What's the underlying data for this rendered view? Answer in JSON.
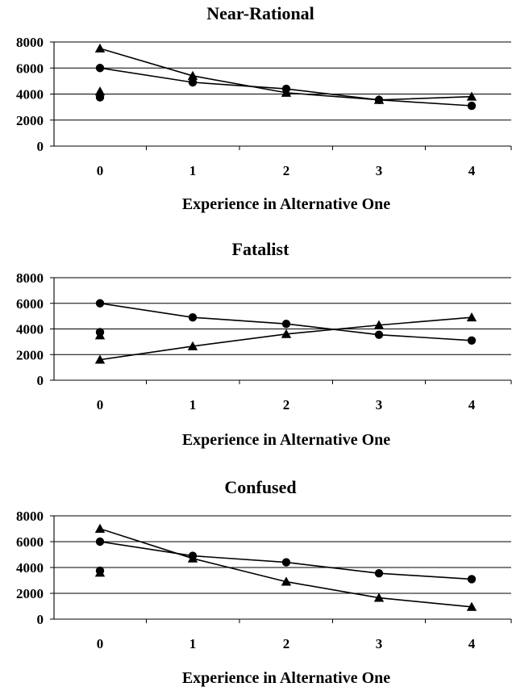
{
  "colors": {
    "line": "#000000",
    "grid": "#000000",
    "background": "#ffffff"
  },
  "chart_data": [
    {
      "type": "line",
      "title": "Near-Rational",
      "xlabel": "Experience in Alternative One",
      "ylabel": "",
      "categories": [
        "0",
        "1",
        "2",
        "3",
        "4"
      ],
      "ylim": [
        0,
        8000
      ],
      "yticks": [
        "0",
        "2000",
        "4000",
        "6000",
        "8000"
      ],
      "grid": "horizontal",
      "legend": "none",
      "series": [
        {
          "marker": "triangle",
          "x": [
            0,
            1,
            2,
            3,
            4
          ],
          "values": [
            7500,
            5400,
            4100,
            3550,
            3800
          ]
        },
        {
          "marker": "circle",
          "x": [
            0,
            1,
            2,
            3,
            4
          ],
          "values": [
            6000,
            4900,
            4400,
            3550,
            3100
          ]
        }
      ],
      "extra_points": [
        {
          "marker": "triangle",
          "x": 0,
          "value": 4200
        },
        {
          "marker": "circle",
          "x": 0,
          "value": 3750
        }
      ]
    },
    {
      "type": "line",
      "title": "Fatalist",
      "xlabel": "Experience in Alternative One",
      "ylabel": "",
      "categories": [
        "0",
        "1",
        "2",
        "3",
        "4"
      ],
      "ylim": [
        0,
        8000
      ],
      "yticks": [
        "0",
        "2000",
        "4000",
        "6000",
        "8000"
      ],
      "grid": "horizontal",
      "legend": "none",
      "series": [
        {
          "marker": "circle",
          "x": [
            0,
            1,
            2,
            3,
            4
          ],
          "values": [
            6000,
            4900,
            4400,
            3550,
            3100
          ]
        },
        {
          "marker": "triangle",
          "x": [
            0,
            1,
            2,
            3,
            4
          ],
          "values": [
            1600,
            2650,
            3600,
            4300,
            4900
          ]
        }
      ],
      "extra_points": [
        {
          "marker": "circle",
          "x": 0,
          "value": 3750
        },
        {
          "marker": "triangle",
          "x": 0,
          "value": 3500
        }
      ]
    },
    {
      "type": "line",
      "title": "Confused",
      "xlabel": "Experience in Alternative One",
      "ylabel": "",
      "categories": [
        "0",
        "1",
        "2",
        "3",
        "4"
      ],
      "ylim": [
        0,
        8000
      ],
      "yticks": [
        "0",
        "2000",
        "4000",
        "6000",
        "8000"
      ],
      "grid": "horizontal",
      "legend": "none",
      "series": [
        {
          "marker": "triangle",
          "x": [
            0,
            1,
            2,
            3,
            4
          ],
          "values": [
            7000,
            4700,
            2900,
            1650,
            950
          ]
        },
        {
          "marker": "circle",
          "x": [
            0,
            1,
            2,
            3,
            4
          ],
          "values": [
            6000,
            4900,
            4400,
            3550,
            3100
          ]
        }
      ],
      "extra_points": [
        {
          "marker": "triangle",
          "x": 0,
          "value": 3600
        },
        {
          "marker": "circle",
          "x": 0,
          "value": 3750
        }
      ]
    }
  ]
}
